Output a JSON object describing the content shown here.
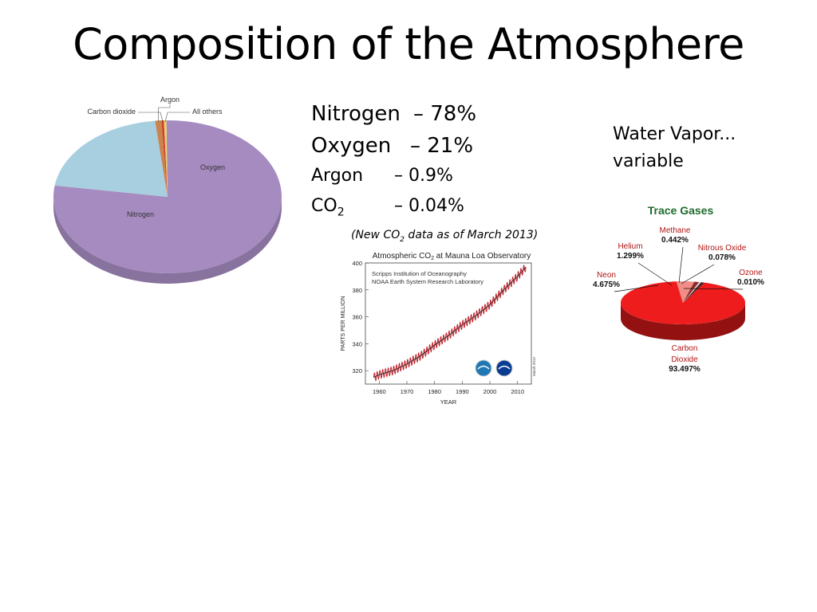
{
  "slide": {
    "title": "Composition of the Atmosphere",
    "composition": {
      "nitrogen": {
        "name": "Nitrogen",
        "value": "– 78%"
      },
      "oxygen": {
        "name": "Oxygen",
        "value": "– 21%"
      },
      "argon": {
        "name": "Argon",
        "value": "– 0.9%"
      },
      "co2": {
        "name": "CO",
        "sub": "2",
        "value": "– 0.04%"
      }
    },
    "note": {
      "pre": "(New CO",
      "sub": "2",
      "post": " data as of March 2013)"
    },
    "water_vapor": {
      "line1": "Water Vapor...",
      "line2": "variable"
    }
  },
  "chart_data": [
    {
      "type": "pie",
      "title": "",
      "slices": [
        {
          "label": "Nitrogen",
          "value": 78,
          "color": "#a68bc1"
        },
        {
          "label": "Oxygen",
          "value": 21,
          "color": "#a8cfe0"
        },
        {
          "label": "Argon",
          "value": 0.9,
          "color": "#c9844f"
        },
        {
          "label": "Carbon dioxide",
          "value": 0.04,
          "color": "#d63f2a"
        },
        {
          "label": "All others",
          "value": 0.06,
          "color": "#e8d26a"
        }
      ]
    },
    {
      "type": "line",
      "title": "Atmospheric CO",
      "title_sub": "2",
      "title_post": " at Mauna Loa Observatory",
      "subtitle_lines": [
        "Scripps Institution of Oceanography",
        "NOAA Earth System Research Laboratory"
      ],
      "xlabel": "YEAR",
      "ylabel": "PARTS PER MILLION",
      "xlim": [
        1955,
        2015
      ],
      "ylim": [
        310,
        400
      ],
      "xticks": [
        1960,
        1970,
        1980,
        1990,
        2000,
        2010
      ],
      "yticks": [
        320,
        340,
        360,
        380,
        400
      ],
      "side_label": "March 2013",
      "trend": [
        {
          "x": 1958,
          "y": 315
        },
        {
          "x": 1960,
          "y": 317
        },
        {
          "x": 1965,
          "y": 320
        },
        {
          "x": 1970,
          "y": 325
        },
        {
          "x": 1975,
          "y": 331
        },
        {
          "x": 1980,
          "y": 339
        },
        {
          "x": 1985,
          "y": 346
        },
        {
          "x": 1990,
          "y": 354
        },
        {
          "x": 1995,
          "y": 361
        },
        {
          "x": 2000,
          "y": 369
        },
        {
          "x": 2005,
          "y": 380
        },
        {
          "x": 2010,
          "y": 390
        },
        {
          "x": 2013,
          "y": 397
        }
      ],
      "seasonal_amplitude": 3,
      "colors": {
        "line": "#c0202a",
        "trend": "#111111"
      }
    },
    {
      "type": "pie",
      "title": "Trace Gases",
      "slices": [
        {
          "label": "Carbon Dioxide",
          "value": 93.497,
          "display": "93.497%",
          "color": "#ee1c1c"
        },
        {
          "label": "Neon",
          "value": 4.675,
          "display": "4.675%",
          "color": "#f08d86"
        },
        {
          "label": "Helium",
          "value": 1.299,
          "display": "1.299%",
          "color": "#8b2a2a"
        },
        {
          "label": "Methane",
          "value": 0.442,
          "display": "0.442%",
          "color": "#f3f3f3"
        },
        {
          "label": "Nitrous Oxide",
          "value": 0.078,
          "display": "0.078%",
          "color": "#5b1a1a"
        },
        {
          "label": "Ozone",
          "value": 0.01,
          "display": "0.010%",
          "color": "#222222"
        }
      ],
      "colors": {
        "title": "#1d6b2a",
        "label": "#b01515",
        "value": "#111111"
      }
    }
  ]
}
